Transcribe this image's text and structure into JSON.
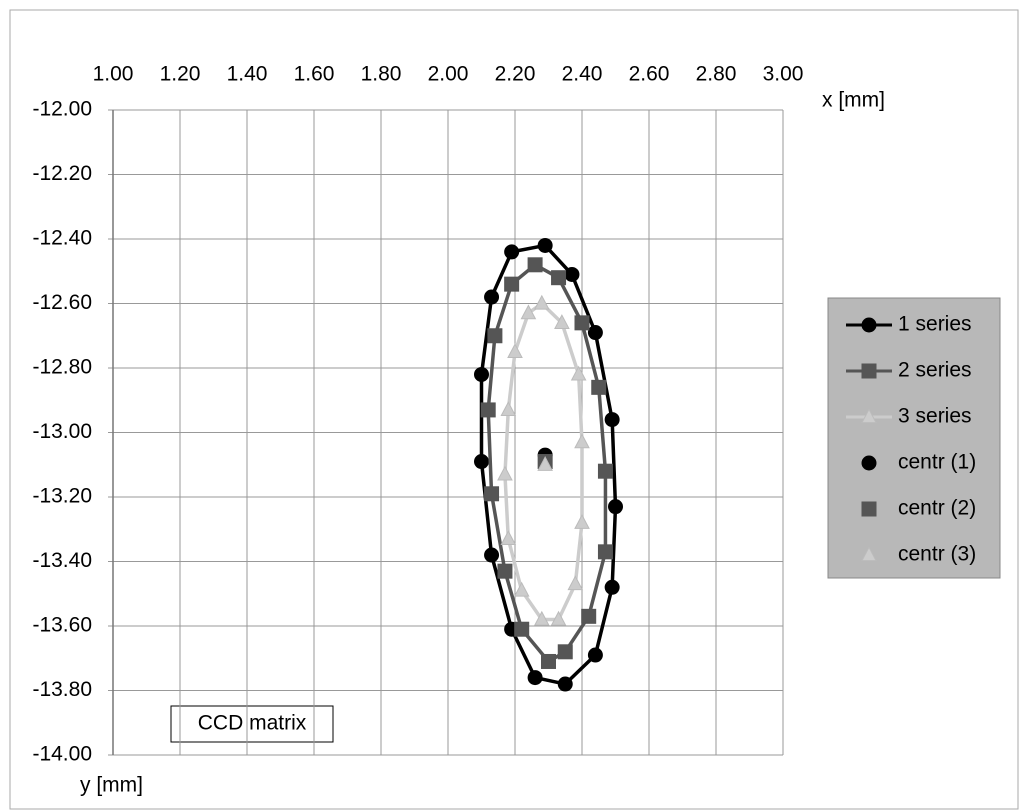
{
  "chart_data": {
    "type": "scatter",
    "xlabel": "x [mm]",
    "ylabel": "y [mm]",
    "annotation": "CCD matrix",
    "xlim": [
      1,
      3
    ],
    "xticks": [
      {
        "value": 1,
        "label": "1.00"
      },
      {
        "value": 1.2,
        "label": "1.20"
      },
      {
        "value": 1.4,
        "label": "1.40"
      },
      {
        "value": 1.6,
        "label": "1.60"
      },
      {
        "value": 1.8,
        "label": "1.80"
      },
      {
        "value": 2,
        "label": "2.00"
      },
      {
        "value": 2.2,
        "label": "2.20"
      },
      {
        "value": 2.4,
        "label": "2.40"
      },
      {
        "value": 2.6,
        "label": "2.60"
      },
      {
        "value": 2.8,
        "label": "2.80"
      },
      {
        "value": 3,
        "label": "3.00"
      }
    ],
    "ylim": [
      -14,
      -12
    ],
    "yticks": [
      {
        "value": -12,
        "label": "-12.00"
      },
      {
        "value": -12.2,
        "label": "-12.20"
      },
      {
        "value": -12.4,
        "label": "-12.40"
      },
      {
        "value": -12.6,
        "label": "-12.60"
      },
      {
        "value": -12.8,
        "label": "-12.80"
      },
      {
        "value": -13,
        "label": "-13.00"
      },
      {
        "value": -13.2,
        "label": "-13.20"
      },
      {
        "value": -13.4,
        "label": "-13.40"
      },
      {
        "value": -13.6,
        "label": "-13.60"
      },
      {
        "value": -13.8,
        "label": "-13.80"
      },
      {
        "value": -14,
        "label": "-14.00"
      }
    ],
    "grid": true,
    "legend": "right",
    "series": [
      {
        "name": "1 series",
        "color": "#000000",
        "marker": "circle",
        "line": true,
        "x": [
          2.29,
          2.37,
          2.44,
          2.49,
          2.5,
          2.49,
          2.44,
          2.35,
          2.26,
          2.19,
          2.13,
          2.1,
          2.1,
          2.13,
          2.19
        ],
        "values": [
          -12.42,
          -12.51,
          -12.69,
          -12.96,
          -13.23,
          -13.48,
          -13.69,
          -13.78,
          -13.76,
          -13.61,
          -13.38,
          -13.09,
          -12.82,
          -12.58,
          -12.44
        ]
      },
      {
        "name": "2 series",
        "color": "#555555",
        "marker": "square",
        "line": true,
        "x": [
          2.26,
          2.33,
          2.4,
          2.45,
          2.47,
          2.47,
          2.42,
          2.35,
          2.3,
          2.22,
          2.17,
          2.13,
          2.12,
          2.14,
          2.19
        ],
        "values": [
          -12.48,
          -12.52,
          -12.66,
          -12.86,
          -13.12,
          -13.37,
          -13.57,
          -13.68,
          -13.71,
          -13.61,
          -13.43,
          -13.19,
          -12.93,
          -12.7,
          -12.54
        ]
      },
      {
        "name": "3 series",
        "color": "#cccccc",
        "marker": "triangle",
        "line": true,
        "x": [
          2.28,
          2.34,
          2.39,
          2.4,
          2.4,
          2.38,
          2.33,
          2.28,
          2.22,
          2.18,
          2.17,
          2.18,
          2.2,
          2.24
        ],
        "values": [
          -12.6,
          -12.66,
          -12.82,
          -13.03,
          -13.28,
          -13.47,
          -13.58,
          -13.58,
          -13.49,
          -13.33,
          -13.13,
          -12.93,
          -12.75,
          -12.63
        ]
      },
      {
        "name": "centr (1)",
        "color": "#000000",
        "marker": "circle",
        "line": false,
        "x": [
          2.29
        ],
        "values": [
          -13.07
        ]
      },
      {
        "name": "centr (2)",
        "color": "#555555",
        "marker": "square",
        "line": false,
        "x": [
          2.29
        ],
        "values": [
          -13.09
        ]
      },
      {
        "name": "centr (3)",
        "color": "#cccccc",
        "marker": "triangle",
        "line": false,
        "x": [
          2.29
        ],
        "values": [
          -13.1
        ]
      }
    ]
  }
}
